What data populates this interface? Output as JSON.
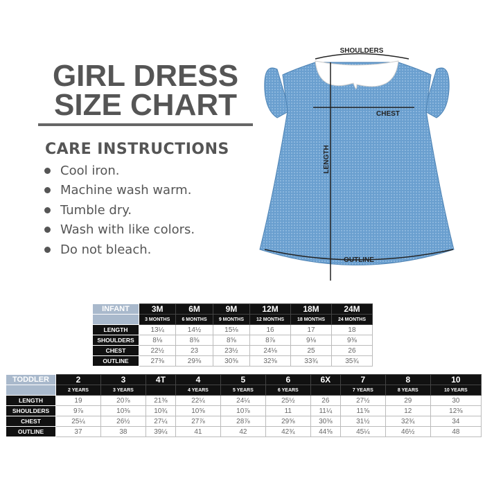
{
  "title": {
    "line1": "GIRL DRESS",
    "line2": "SIZE CHART"
  },
  "care": {
    "heading": "CARE INSTRUCTIONS",
    "items": [
      "Cool iron.",
      "Machine wash warm.",
      "Tumble dry.",
      "Wash with like colors.",
      "Do not bleach."
    ]
  },
  "diagram": {
    "shoulders": "SHOULDERS",
    "chest": "CHEST",
    "length": "LENGTH",
    "outline": "OUTLINE",
    "dress_color": "#6a9fcf",
    "collar_color": "#ffffff"
  },
  "infant": {
    "category": "INFANT",
    "sizes": [
      "3M",
      "6M",
      "9M",
      "12M",
      "18M",
      "24M"
    ],
    "subs": [
      "3 MONTHS",
      "6 MONTHS",
      "9 MONTHS",
      "12 MONTHS",
      "18 MONTHS",
      "24 MONTHS"
    ],
    "rows": [
      {
        "label": "LENGTH",
        "values": [
          "13¼",
          "14½",
          "15⅛",
          "16",
          "17",
          "18"
        ]
      },
      {
        "label": "SHOULDERS",
        "values": [
          "8⅛",
          "8⅜",
          "8⅝",
          "8⅞",
          "9⅛",
          "9⅜"
        ]
      },
      {
        "label": "CHEST",
        "values": [
          "22½",
          "23",
          "23½",
          "24⅛",
          "25",
          "26"
        ]
      },
      {
        "label": "OUTLINE",
        "values": [
          "27⅜",
          "29⅜",
          "30⅝",
          "32⅜",
          "33¾",
          "35¾"
        ]
      }
    ]
  },
  "toddler": {
    "category": "TODDLER",
    "sizes": [
      "2",
      "3",
      "4T",
      "4",
      "5",
      "6",
      "6X",
      "7",
      "8",
      "10"
    ],
    "subs": [
      "2 YEARS",
      "3 YEARS",
      "",
      "4 YEARS",
      "5 YEARS",
      "6 YEARS",
      "",
      "7 YEARS",
      "8 YEARS",
      "10 YEARS"
    ],
    "rows": [
      {
        "label": "LENGTH",
        "values": [
          "19",
          "20⅞",
          "21⅜",
          "22¼",
          "24¼",
          "25½",
          "26",
          "27½",
          "29",
          "30"
        ]
      },
      {
        "label": "SHOULDERS",
        "values": [
          "9⅞",
          "10⅜",
          "10¾",
          "10⅝",
          "10⅞",
          "11",
          "11¼",
          "11⅝",
          "12",
          "12⅜"
        ]
      },
      {
        "label": "CHEST",
        "values": [
          "25¼",
          "26½",
          "27¼",
          "27⅞",
          "28⅞",
          "29⅝",
          "30⅜",
          "31½",
          "32¾",
          "34"
        ]
      },
      {
        "label": "OUTLINE",
        "values": [
          "37",
          "38",
          "39¼",
          "41",
          "42",
          "42¾",
          "44⅝",
          "45¼",
          "46½",
          "48"
        ]
      }
    ]
  }
}
